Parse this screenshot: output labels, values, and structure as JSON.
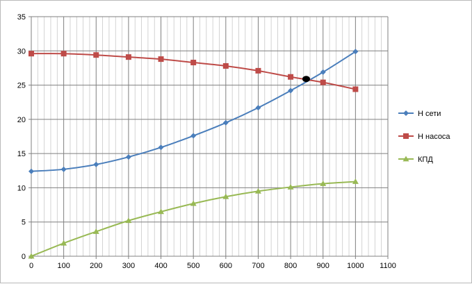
{
  "chart_data": {
    "type": "line",
    "x": [
      0,
      100,
      200,
      300,
      400,
      500,
      600,
      700,
      800,
      900,
      1000
    ],
    "xlim": [
      0,
      1100
    ],
    "ylim": [
      0,
      35
    ],
    "x_ticks": [
      "0",
      "100",
      "200",
      "300",
      "400",
      "500",
      "600",
      "700",
      "800",
      "900",
      "1000",
      "1100"
    ],
    "y_ticks": [
      "0",
      "5",
      "10",
      "15",
      "20",
      "25",
      "30",
      "35"
    ],
    "grid": "major and minor vertical, major horizontal",
    "legend_position": "right",
    "series": [
      {
        "name": "Н сети",
        "marker": "diamond",
        "color": "#4a7ebb",
        "values": [
          12.4,
          12.7,
          13.4,
          14.5,
          15.9,
          17.6,
          19.5,
          21.7,
          24.2,
          26.9,
          29.9
        ]
      },
      {
        "name": "Н насоса",
        "marker": "square",
        "color": "#be4b48",
        "values": [
          29.6,
          29.6,
          29.4,
          29.1,
          28.8,
          28.3,
          27.8,
          27.1,
          26.2,
          25.4,
          24.4
        ]
      },
      {
        "name": "КПД",
        "marker": "triangle",
        "color": "#98b954",
        "values": [
          0.0,
          1.9,
          3.6,
          5.2,
          6.5,
          7.7,
          8.7,
          9.5,
          10.1,
          10.6,
          10.9
        ]
      }
    ],
    "annotations": [
      {
        "type": "point",
        "x": 848,
        "y": 25.9,
        "color": "#000000"
      }
    ]
  }
}
